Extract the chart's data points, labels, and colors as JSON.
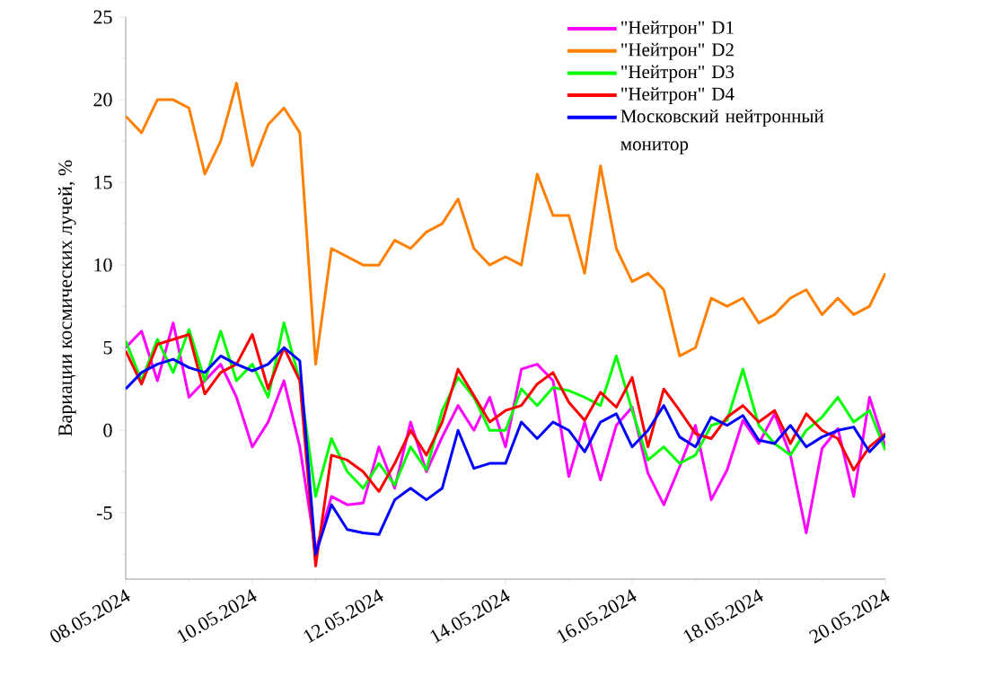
{
  "chart_data": {
    "type": "line",
    "ylabel": "Вариации космических лучей, %",
    "legend": "top right",
    "grid": false,
    "marker": "none",
    "line_style": "solid",
    "xlim": [
      "2024-05-08",
      "2024-05-20"
    ],
    "ylim": [
      -9,
      25
    ],
    "xticks": [
      {
        "value": "2024-05-08",
        "label": "08.05.2024"
      },
      {
        "value": "2024-05-09",
        "label": null
      },
      {
        "value": "2024-05-10",
        "label": "10.05.2024"
      },
      {
        "value": "2024-05-11",
        "label": null
      },
      {
        "value": "2024-05-12",
        "label": "12.05.2024"
      },
      {
        "value": "2024-05-13",
        "label": null
      },
      {
        "value": "2024-05-14",
        "label": "14.05.2024"
      },
      {
        "value": "2024-05-15",
        "label": null
      },
      {
        "value": "2024-05-16",
        "label": "16.05.2024"
      },
      {
        "value": "2024-05-17",
        "label": null
      },
      {
        "value": "2024-05-18",
        "label": "18.05.2024"
      },
      {
        "value": "2024-05-19",
        "label": null
      },
      {
        "value": "2024-05-20",
        "label": "20.05.2024"
      }
    ],
    "yticks": [
      {
        "value": -7.5,
        "label": null
      },
      -5,
      {
        "value": -2.5,
        "label": null
      },
      0,
      {
        "value": 2.5,
        "label": null
      },
      5,
      {
        "value": 7.5,
        "label": null
      },
      10,
      {
        "value": 12.5,
        "label": null
      },
      15,
      {
        "value": 17.5,
        "label": null
      },
      20,
      {
        "value": 22.5,
        "label": null
      },
      25
    ],
    "x": [
      "2024-05-08T00:00",
      "2024-05-08T06:00",
      "2024-05-08T12:00",
      "2024-05-08T18:00",
      "2024-05-09T00:00",
      "2024-05-09T06:00",
      "2024-05-09T12:00",
      "2024-05-09T18:00",
      "2024-05-10T00:00",
      "2024-05-10T06:00",
      "2024-05-10T12:00",
      "2024-05-10T18:00",
      "2024-05-11T00:00",
      "2024-05-11T06:00",
      "2024-05-11T12:00",
      "2024-05-11T18:00",
      "2024-05-12T00:00",
      "2024-05-12T06:00",
      "2024-05-12T12:00",
      "2024-05-12T18:00",
      "2024-05-13T00:00",
      "2024-05-13T06:00",
      "2024-05-13T12:00",
      "2024-05-13T18:00",
      "2024-05-14T00:00",
      "2024-05-14T06:00",
      "2024-05-14T12:00",
      "2024-05-14T18:00",
      "2024-05-15T00:00",
      "2024-05-15T06:00",
      "2024-05-15T12:00",
      "2024-05-15T18:00",
      "2024-05-16T00:00",
      "2024-05-16T06:00",
      "2024-05-16T12:00",
      "2024-05-16T18:00",
      "2024-05-17T00:00",
      "2024-05-17T06:00",
      "2024-05-17T12:00",
      "2024-05-17T18:00",
      "2024-05-18T00:00",
      "2024-05-18T06:00",
      "2024-05-18T12:00",
      "2024-05-18T18:00",
      "2024-05-19T00:00",
      "2024-05-19T06:00",
      "2024-05-19T12:00",
      "2024-05-19T18:00",
      "2024-05-20T00:00"
    ],
    "series": [
      {
        "name": "\"Нейтрон\" D1",
        "color": "#ff00ff",
        "values": [
          5,
          6,
          3,
          6.5,
          2,
          3,
          4,
          2,
          -1,
          0.5,
          3,
          -1,
          -7.3,
          -4,
          -4.5,
          -4.4,
          -1,
          -3.5,
          0.5,
          -2.5,
          -0.4,
          1.5,
          0,
          2,
          -1,
          3.7,
          4,
          3,
          -2.8,
          0.5,
          -3,
          0.3,
          1.4,
          -2.6,
          -4.5,
          -2.2,
          0.3,
          -4.2,
          -2.4,
          0.6,
          -0.8,
          1,
          -1.5,
          -6.2,
          -1.1,
          0.1,
          -4,
          2,
          -1
        ]
      },
      {
        "name": "\"Нейтрон\" D2",
        "color": "#ff8000",
        "values": [
          19,
          18,
          20,
          20,
          19.5,
          15.5,
          17.5,
          21,
          16,
          18.5,
          19.5,
          18,
          4,
          11,
          10.5,
          10,
          10,
          11.5,
          11,
          12,
          12.5,
          14,
          11,
          10,
          10.5,
          10,
          15.5,
          13,
          13,
          9.5,
          16,
          11,
          9,
          9.5,
          8.5,
          4.5,
          5,
          8,
          7.5,
          8,
          6.5,
          7,
          8,
          8.5,
          7,
          8,
          7,
          7.5,
          9.5
        ]
      },
      {
        "name": "\"Нейтрон\" D3",
        "color": "#00ff00",
        "values": [
          5.4,
          3,
          5.5,
          3.5,
          6.1,
          3,
          6,
          3,
          4,
          2,
          6.5,
          3,
          -4,
          -0.5,
          -2.5,
          -3.5,
          -2,
          -3.3,
          -1,
          -2.4,
          1.2,
          3.2,
          2,
          0,
          0,
          2.5,
          1.5,
          2.6,
          2.4,
          2,
          1.5,
          4.5,
          1.2,
          -1.8,
          -1,
          -2,
          -1.5,
          0.3,
          0.6,
          3.7,
          0.3,
          -0.8,
          -1.5,
          0,
          0.8,
          2,
          0.5,
          1.2,
          -1.2
        ]
      },
      {
        "name": "\"Нейтрон\" D4",
        "color": "#ff0000",
        "values": [
          4.8,
          2.8,
          5.2,
          5.5,
          5.8,
          2.2,
          3.5,
          4,
          5.8,
          2.5,
          5,
          3,
          -8.2,
          -1.5,
          -1.8,
          -2.5,
          -3.7,
          -2,
          0,
          -1.5,
          0.5,
          3.7,
          2.1,
          0.5,
          1.2,
          1.5,
          2.8,
          3.5,
          1.7,
          0.6,
          2.3,
          1.4,
          3.2,
          -1,
          2.5,
          1.2,
          -0.2,
          -0.5,
          0.8,
          1.5,
          0.5,
          1.2,
          -0.8,
          1,
          0,
          -0.5,
          -2.4,
          -1,
          -0.2
        ]
      },
      {
        "name": "Московский нейтронный монитор",
        "color": "#0000ff",
        "values": [
          2.5,
          3.5,
          4,
          4.3,
          3.8,
          3.5,
          4.5,
          4,
          3.6,
          4,
          5,
          4.2,
          -7.5,
          -4.5,
          -6,
          -6.2,
          -6.3,
          -4.2,
          -3.5,
          -4.2,
          -3.5,
          0,
          -2.3,
          -2,
          -2,
          0.5,
          -0.5,
          0.5,
          0,
          -1.3,
          0.5,
          1,
          -1,
          0,
          1.5,
          -0.4,
          -1,
          0.8,
          0.3,
          0.9,
          -0.6,
          -0.8,
          0.3,
          -1,
          -0.4,
          0,
          0.2,
          -1.3,
          -0.3
        ]
      }
    ]
  }
}
